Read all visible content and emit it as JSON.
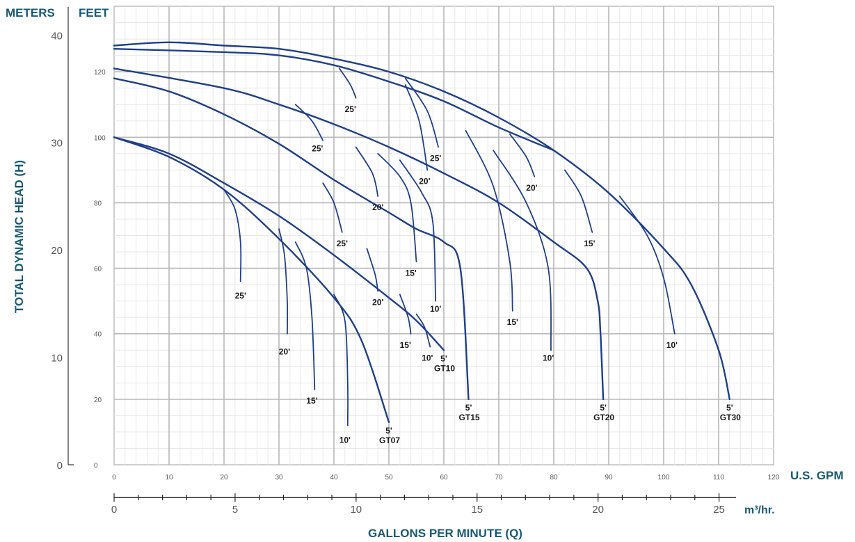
{
  "chart_data": {
    "type": "line",
    "headers": {
      "meters": "METERS",
      "feet": "FEET",
      "gpm_unit": "U.S. GPM",
      "m3_unit": "m³/hr."
    },
    "xlabel": "GALLONS PER MINUTE (Q)",
    "ylabel": "TOTAL DYNAMIC HEAD (H)",
    "gpm_axis": {
      "range": [
        0,
        120
      ],
      "ticks": [
        0,
        10,
        20,
        30,
        40,
        50,
        60,
        70,
        80,
        90,
        100,
        110,
        120
      ]
    },
    "feet_axis": {
      "range": [
        0,
        140
      ],
      "ticks": [
        0,
        20,
        40,
        60,
        80,
        100,
        120
      ]
    },
    "meters_axis": {
      "ticks": [
        0,
        10,
        20,
        30,
        40
      ]
    },
    "m3_axis": {
      "ticks": [
        0,
        5,
        10,
        15,
        20,
        25
      ]
    },
    "grid": true,
    "series": [
      {
        "name": "GT07",
        "label": "GT07",
        "depth_label": "5'",
        "points": [
          [
            0,
            100
          ],
          [
            10,
            94
          ],
          [
            20,
            84
          ],
          [
            30,
            69
          ],
          [
            40,
            51
          ],
          [
            45,
            38
          ],
          [
            50,
            13
          ]
        ]
      },
      {
        "name": "GT10",
        "label": "GT10",
        "depth_label": "5'",
        "points": [
          [
            0,
            100
          ],
          [
            10,
            95
          ],
          [
            20,
            86
          ],
          [
            30,
            76
          ],
          [
            40,
            64
          ],
          [
            50,
            51
          ],
          [
            55,
            44
          ],
          [
            60,
            35
          ]
        ]
      },
      {
        "name": "GT15",
        "label": "GT15",
        "depth_label": "5'",
        "points": [
          [
            0,
            118
          ],
          [
            10,
            114
          ],
          [
            20,
            107
          ],
          [
            30,
            98
          ],
          [
            40,
            87
          ],
          [
            50,
            77
          ],
          [
            55,
            72
          ],
          [
            60,
            68
          ],
          [
            63,
            60
          ],
          [
            64.5,
            20
          ]
        ]
      },
      {
        "name": "GT20",
        "label": "GT20",
        "depth_label": "5'",
        "points": [
          [
            0,
            121
          ],
          [
            20,
            115
          ],
          [
            30,
            110
          ],
          [
            40,
            104
          ],
          [
            50,
            97
          ],
          [
            60,
            89
          ],
          [
            70,
            80
          ],
          [
            80,
            68
          ],
          [
            86,
            60
          ],
          [
            88,
            50
          ],
          [
            88.5,
            40
          ],
          [
            89,
            20
          ]
        ]
      },
      {
        "name": "GT30",
        "label": "GT30",
        "depth_label": "5'",
        "points": [
          [
            0,
            128
          ],
          [
            10,
            129
          ],
          [
            20,
            128
          ],
          [
            30,
            127
          ],
          [
            40,
            124
          ],
          [
            50,
            120
          ],
          [
            60,
            114
          ],
          [
            70,
            106
          ],
          [
            80,
            96
          ],
          [
            90,
            83
          ],
          [
            100,
            66
          ],
          [
            105,
            55
          ],
          [
            110,
            35
          ],
          [
            112,
            20
          ]
        ]
      },
      {
        "name": "GT30 head",
        "points": [
          [
            0,
            127
          ],
          [
            20,
            126
          ],
          [
            30,
            125
          ],
          [
            40,
            122
          ],
          [
            50,
            117
          ],
          [
            60,
            111
          ],
          [
            70,
            103
          ],
          [
            80,
            96
          ]
        ]
      }
    ],
    "branches": [
      {
        "label": "25'",
        "label_at": [
          23,
          52
        ],
        "points": [
          [
            20,
            84
          ],
          [
            22,
            78
          ],
          [
            23,
            68
          ],
          [
            23,
            56
          ]
        ]
      },
      {
        "label": "20'",
        "label_at": [
          31,
          35
        ],
        "points": [
          [
            30,
            72
          ],
          [
            31,
            64
          ],
          [
            31.5,
            50
          ],
          [
            31.5,
            40
          ]
        ]
      },
      {
        "label": "15'",
        "label_at": [
          36,
          20
        ],
        "points": [
          [
            33,
            68
          ],
          [
            35,
            60
          ],
          [
            36,
            45
          ],
          [
            36.5,
            23
          ]
        ]
      },
      {
        "label": "10'",
        "label_at": [
          42,
          8
        ],
        "points": [
          [
            40,
            52
          ],
          [
            42,
            44
          ],
          [
            42.5,
            25
          ],
          [
            42.5,
            12
          ]
        ]
      },
      {
        "label": "25'",
        "label_at": [
          41.5,
          68
        ],
        "points": [
          [
            38,
            86
          ],
          [
            40,
            80
          ],
          [
            41.5,
            71
          ]
        ]
      },
      {
        "label": "20'",
        "label_at": [
          48,
          50
        ],
        "points": [
          [
            46,
            66
          ],
          [
            47.5,
            58
          ],
          [
            48,
            53
          ]
        ]
      },
      {
        "label": "15'",
        "label_at": [
          53,
          37
        ],
        "points": [
          [
            52,
            52
          ],
          [
            53.5,
            45
          ],
          [
            54,
            40
          ]
        ]
      },
      {
        "label": "10'",
        "label_at": [
          57,
          33
        ],
        "points": [
          [
            55,
            46
          ],
          [
            56.5,
            42
          ],
          [
            57.5,
            36
          ]
        ]
      },
      {
        "label": "25'",
        "label_at": [
          37,
          97
        ],
        "points": [
          [
            33,
            110
          ],
          [
            36,
            105
          ],
          [
            38,
            99
          ]
        ]
      },
      {
        "label": "20'",
        "label_at": [
          48,
          79
        ],
        "points": [
          [
            44,
            97
          ],
          [
            47,
            89
          ],
          [
            48,
            82
          ]
        ]
      },
      {
        "label": "15'",
        "label_at": [
          54,
          59
        ],
        "points": [
          [
            48,
            95
          ],
          [
            52,
            88
          ],
          [
            54,
            80
          ],
          [
            55,
            62
          ]
        ]
      },
      {
        "label": "10'",
        "label_at": [
          58.5,
          48
        ],
        "points": [
          [
            52,
            93
          ],
          [
            56,
            83
          ],
          [
            58,
            74
          ],
          [
            58.5,
            50
          ]
        ]
      },
      {
        "label": "25'",
        "label_at": [
          43,
          109
        ],
        "points": [
          [
            41,
            121
          ],
          [
            43,
            116
          ],
          [
            44,
            112
          ]
        ]
      },
      {
        "label": "20'",
        "label_at": [
          56.5,
          87
        ],
        "points": [
          [
            53,
            116
          ],
          [
            55.5,
            105
          ],
          [
            57,
            90
          ]
        ]
      },
      {
        "label": "25'",
        "label_at": [
          58.5,
          94
        ],
        "points": [
          [
            53,
            118
          ],
          [
            57,
            108
          ],
          [
            59,
            97
          ]
        ]
      },
      {
        "label": "15'",
        "label_at": [
          72.5,
          44
        ],
        "points": [
          [
            64,
            102
          ],
          [
            69,
            85
          ],
          [
            72,
            62
          ],
          [
            72.5,
            47
          ]
        ]
      },
      {
        "label": "10'",
        "label_at": [
          79,
          33
        ],
        "points": [
          [
            69,
            96
          ],
          [
            75,
            80
          ],
          [
            79,
            60
          ],
          [
            79.5,
            35
          ]
        ]
      },
      {
        "label": "20'",
        "label_at": [
          76,
          85
        ],
        "points": [
          [
            72,
            101
          ],
          [
            75,
            94
          ],
          [
            76.5,
            88
          ]
        ]
      },
      {
        "label": "15'",
        "label_at": [
          86.5,
          68
        ],
        "points": [
          [
            82,
            90
          ],
          [
            85,
            82
          ],
          [
            87,
            71
          ]
        ]
      },
      {
        "label": "10'",
        "label_at": [
          101.5,
          37
        ],
        "points": [
          [
            92,
            82
          ],
          [
            97,
            70
          ],
          [
            100,
            57
          ],
          [
            102,
            40
          ]
        ]
      }
    ]
  }
}
